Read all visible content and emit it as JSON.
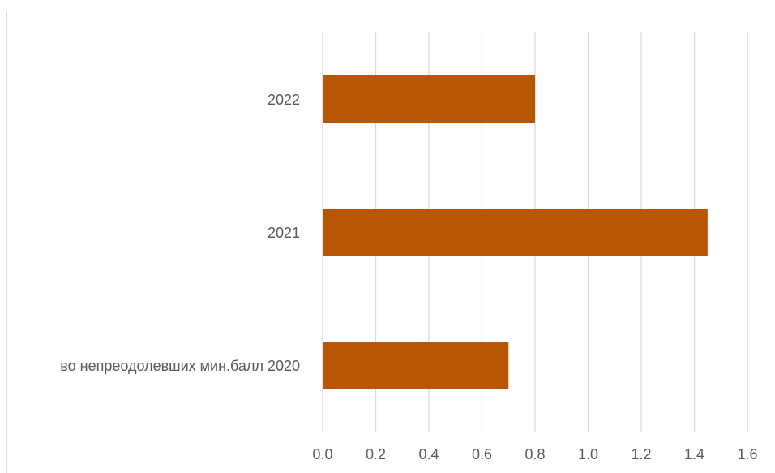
{
  "chart_data": {
    "type": "bar",
    "orientation": "horizontal",
    "title": "",
    "xlabel": "",
    "ylabel": "",
    "categories": [
      "во непреодолевших мин.балл 2020",
      "2021",
      "2022"
    ],
    "values": [
      0.7,
      1.45,
      0.8
    ],
    "xlim": [
      0,
      1.6
    ],
    "x_ticks": [
      "0.0",
      "0.2",
      "0.4",
      "0.6",
      "0.8",
      "1.0",
      "1.2",
      "1.4",
      "1.6"
    ],
    "grid": "vertical",
    "legend": "none",
    "colors": {
      "bar": "#b85604",
      "grid": "#d9d9d9",
      "text": "#595959"
    }
  }
}
